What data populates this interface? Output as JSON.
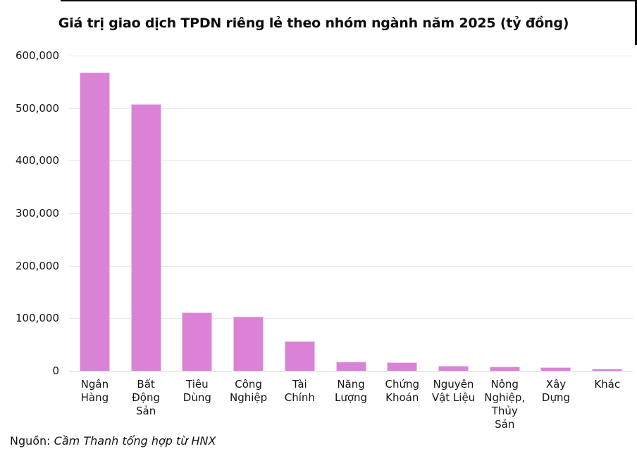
{
  "chart_data": {
    "type": "bar",
    "title": "Giá trị giao dịch TPDN riêng lẻ theo nhóm ngành năm 2025 (tỷ đồng)",
    "xlabel": "",
    "ylabel": "",
    "categories": [
      "Ngân Hàng",
      "Bất Động Sản",
      "Tiêu Dùng",
      "Công Nghiệp",
      "Tài Chính",
      "Năng Lượng",
      "Chứng Khoán",
      "Nguyên Vật Liệu",
      "Nông Nghiệp, Thủy Sản",
      "Xây Dựng",
      "Khác"
    ],
    "category_lines": [
      [
        "Ngân",
        "Hàng"
      ],
      [
        "Bất",
        "Động",
        "Sản"
      ],
      [
        "Tiêu",
        "Dùng"
      ],
      [
        "Công",
        "Nghiệp"
      ],
      [
        "Tài",
        "Chính"
      ],
      [
        "Năng",
        "Lượng"
      ],
      [
        "Chứng",
        "Khoán"
      ],
      [
        "Nguyên",
        "Vật Liệu"
      ],
      [
        "Nông",
        "Nghiệp,",
        "Thủy",
        "Sản"
      ],
      [
        "Xây",
        "Dựng"
      ],
      [
        "Khác"
      ]
    ],
    "values": [
      566000,
      506000,
      110000,
      102000,
      55000,
      16000,
      15000,
      8000,
      7000,
      5000,
      3000
    ],
    "ylim": [
      0,
      600000
    ],
    "yticks": [
      0,
      100000,
      200000,
      300000,
      400000,
      500000,
      600000
    ],
    "ytick_labels": [
      "0",
      "100,000",
      "200,000",
      "300,000",
      "400,000",
      "500,000",
      "600,000"
    ],
    "grid": true,
    "legend": "none",
    "bar_color": "#d982d6",
    "bar_border_color": "#eec9ea",
    "gridline_color": "#e7e7e7",
    "axis_line_color": "#d7d7d7"
  },
  "source": {
    "prefix": "Nguồn: ",
    "text": "Cầm Thanh tổng hợp từ HNX"
  }
}
